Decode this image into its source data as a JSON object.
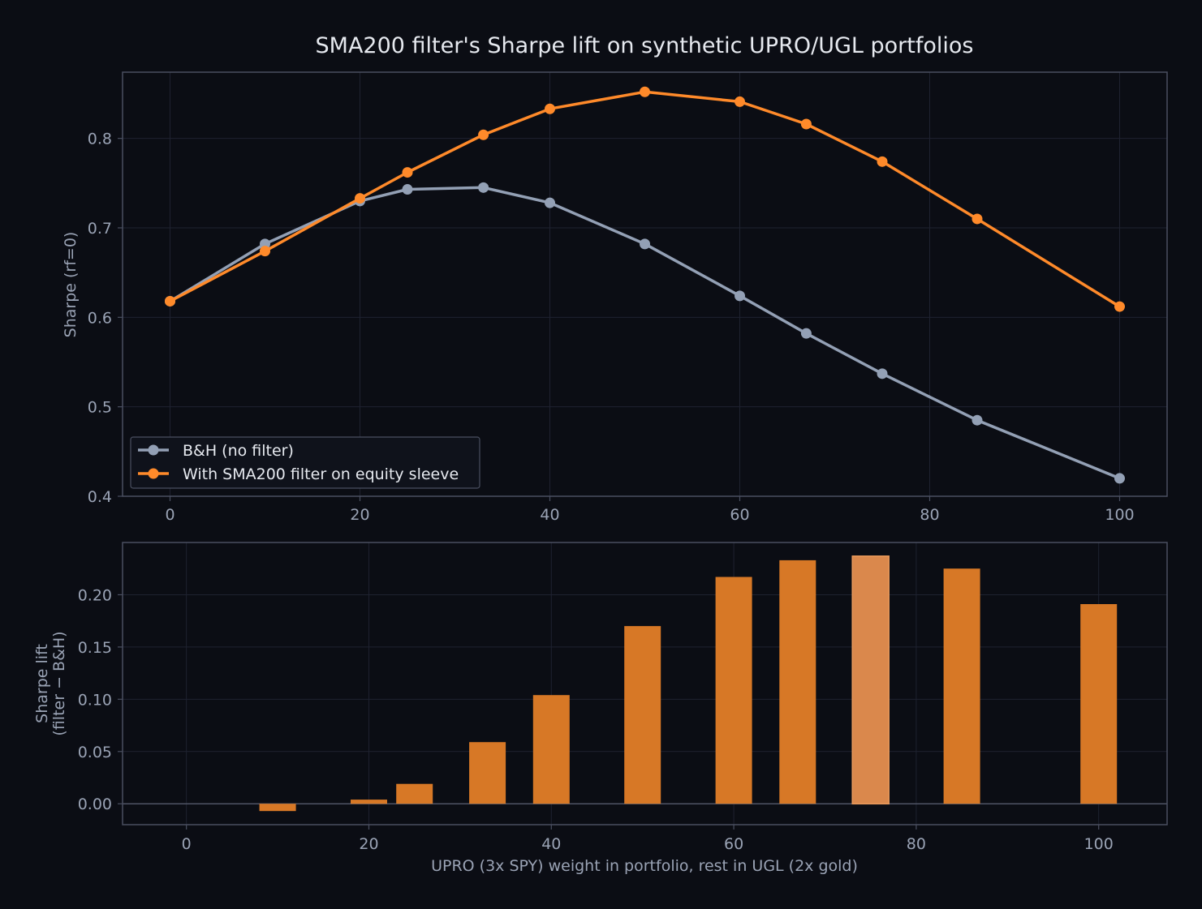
{
  "figure": {
    "title": "SMA200 filter's Sharpe lift on synthetic UPRO/UGL portfolios",
    "colors": {
      "background": "#0b0d14",
      "axes_face": "#0b0d14",
      "spine": "#4a4f60",
      "grid": "#1f2230",
      "tick_text": "#9aa3b5",
      "title_text": "#e6e9ef",
      "bh": "#93a0b5",
      "filter": "#ff8a2a",
      "bar": "#d77826",
      "bar_highlight": "#da884c"
    }
  },
  "chart_data": [
    {
      "type": "line",
      "title": "",
      "xlabel": "",
      "ylabel": "Sharpe (rf=0)",
      "xlim": [
        -5,
        105
      ],
      "ylim": [
        0.4,
        0.874
      ],
      "xticks": [
        0,
        20,
        40,
        60,
        80,
        100
      ],
      "yticks": [
        0.4,
        0.5,
        0.6,
        0.7,
        0.8
      ],
      "x": [
        0,
        10,
        20,
        25,
        33,
        40,
        50,
        60,
        67,
        75,
        85,
        100
      ],
      "grid": true,
      "legend": "lower-left",
      "series": [
        {
          "name": "B&H (no filter)",
          "color": "bh",
          "values": [
            0.618,
            0.682,
            0.73,
            0.743,
            0.745,
            0.728,
            0.682,
            0.624,
            0.582,
            0.537,
            0.485,
            0.42
          ]
        },
        {
          "name": "With SMA200 filter on equity sleeve",
          "color": "filter",
          "values": [
            0.618,
            0.674,
            0.733,
            0.762,
            0.804,
            0.833,
            0.852,
            0.841,
            0.816,
            0.774,
            0.71,
            0.612
          ]
        }
      ]
    },
    {
      "type": "bar",
      "title": "",
      "xlabel": "UPRO (3x SPY) weight in portfolio, rest in UGL (2x gold)",
      "ylabel_lines": [
        "Sharpe lift",
        "(filter − B&H)"
      ],
      "xlim": [
        -7,
        107.5
      ],
      "ylim": [
        -0.02,
        0.25
      ],
      "xticks": [
        0,
        20,
        40,
        60,
        80,
        100
      ],
      "yticks": [
        0.0,
        0.05,
        0.1,
        0.15,
        0.2
      ],
      "x": [
        0,
        10,
        20,
        25,
        33,
        40,
        50,
        60,
        67,
        75,
        85,
        100
      ],
      "values": [
        0.0,
        -0.007,
        0.004,
        0.019,
        0.059,
        0.104,
        0.17,
        0.217,
        0.233,
        0.237,
        0.225,
        0.191
      ],
      "highlight_index": 9,
      "bar_width": 4,
      "grid": true
    }
  ]
}
